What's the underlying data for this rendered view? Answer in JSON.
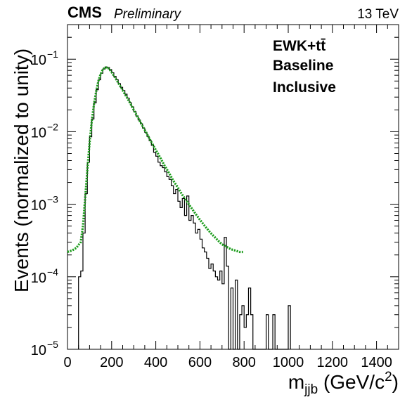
{
  "header": {
    "experiment": "CMS",
    "status": "Preliminary",
    "energy": "13 TeV"
  },
  "legend_text": {
    "line1": "EWK+tt̄",
    "line2": "Baseline",
    "line3": "Inclusive"
  },
  "axes": {
    "x_label_main": "m",
    "x_label_sub": "jjb",
    "x_label_units": " (GeV/c",
    "x_label_exp": "2",
    "x_label_close": ")",
    "y_label": "Events (normalized to unity)"
  },
  "chart_data": {
    "type": "line",
    "title": "",
    "xlabel": "m_jjb (GeV/c^2)",
    "ylabel": "Events (normalized to unity)",
    "xlim": [
      0,
      1500
    ],
    "ylim": [
      1e-05,
      0.3
    ],
    "yscale": "log",
    "grid": false,
    "x_ticks": [
      0,
      200,
      400,
      600,
      800,
      1000,
      1200,
      1400
    ],
    "y_ticks": [
      {
        "value": 1e-05,
        "mant": "10",
        "exp": "−5"
      },
      {
        "value": 0.0001,
        "mant": "10",
        "exp": "−4"
      },
      {
        "value": 0.001,
        "mant": "10",
        "exp": "−3"
      },
      {
        "value": 0.01,
        "mant": "10",
        "exp": "−2"
      },
      {
        "value": 0.1,
        "mant": "10",
        "exp": "−1"
      }
    ],
    "histogram": {
      "bin_width": 10,
      "color": "#000000",
      "bins": [
        [
          50,
          0.0001
        ],
        [
          60,
          0.00012
        ],
        [
          70,
          0.0004
        ],
        [
          80,
          0.0014
        ],
        [
          90,
          0.0038
        ],
        [
          100,
          0.0085
        ],
        [
          110,
          0.015
        ],
        [
          120,
          0.025
        ],
        [
          130,
          0.038
        ],
        [
          140,
          0.052
        ],
        [
          150,
          0.064
        ],
        [
          160,
          0.073
        ],
        [
          170,
          0.078
        ],
        [
          180,
          0.077
        ],
        [
          190,
          0.072
        ],
        [
          200,
          0.065
        ],
        [
          210,
          0.058
        ],
        [
          220,
          0.052
        ],
        [
          230,
          0.046
        ],
        [
          240,
          0.041
        ],
        [
          250,
          0.037
        ],
        [
          260,
          0.033
        ],
        [
          270,
          0.029
        ],
        [
          280,
          0.025
        ],
        [
          290,
          0.022
        ],
        [
          300,
          0.019
        ],
        [
          310,
          0.0165
        ],
        [
          320,
          0.0145
        ],
        [
          330,
          0.0128
        ],
        [
          340,
          0.0112
        ],
        [
          350,
          0.0098
        ],
        [
          360,
          0.0086
        ],
        [
          370,
          0.0075
        ],
        [
          380,
          0.0065
        ],
        [
          390,
          0.0052
        ],
        [
          400,
          0.0046
        ],
        [
          410,
          0.0038
        ],
        [
          420,
          0.0034
        ],
        [
          430,
          0.0032
        ],
        [
          440,
          0.0028
        ],
        [
          450,
          0.0024
        ],
        [
          460,
          0.0022
        ],
        [
          470,
          0.0018
        ],
        [
          480,
          0.0014
        ],
        [
          490,
          0.0016
        ],
        [
          500,
          0.0011
        ],
        [
          510,
          0.0009
        ],
        [
          520,
          0.0012
        ],
        [
          530,
          0.0007
        ],
        [
          540,
          0.0013
        ],
        [
          550,
          0.0006
        ],
        [
          560,
          0.0007
        ],
        [
          570,
          0.00055
        ],
        [
          580,
          0.0004
        ],
        [
          590,
          0.00045
        ],
        [
          600,
          0.00033
        ],
        [
          610,
          0.00025
        ],
        [
          620,
          0.00022
        ],
        [
          630,
          0.00018
        ],
        [
          640,
          0.00013
        ],
        [
          650,
          0.00015
        ],
        [
          660,
          0.00012
        ],
        [
          670,
          0.0001
        ],
        [
          680,
          9e-05
        ],
        [
          690,
          0.00012
        ],
        [
          700,
          8e-05
        ],
        [
          710,
          0.00035
        ],
        [
          720,
          0.00014
        ],
        [
          730,
          1e-05
        ],
        [
          740,
          7e-05
        ],
        [
          750,
          1e-05
        ],
        [
          760,
          9e-05
        ],
        [
          770,
          1e-05
        ],
        [
          780,
          3e-05
        ],
        [
          790,
          4e-05
        ],
        [
          800,
          2e-05
        ],
        [
          810,
          3e-05
        ],
        [
          820,
          7e-05
        ],
        [
          830,
          3e-05
        ],
        [
          840,
          1e-05
        ],
        [
          850,
          1e-05
        ],
        [
          860,
          1e-05
        ],
        [
          870,
          1e-05
        ],
        [
          880,
          1e-05
        ],
        [
          890,
          1e-05
        ],
        [
          900,
          3e-05
        ],
        [
          910,
          1e-05
        ],
        [
          920,
          1e-05
        ],
        [
          930,
          3e-05
        ],
        [
          940,
          1e-05
        ],
        [
          950,
          1e-05
        ],
        [
          960,
          1e-05
        ],
        [
          970,
          1e-05
        ],
        [
          980,
          1e-05
        ],
        [
          990,
          1e-05
        ],
        [
          1000,
          4e-05
        ]
      ]
    },
    "fit_curve": {
      "color": "#1a9c1a",
      "points": [
        [
          0,
          0.00022
        ],
        [
          20,
          0.00023
        ],
        [
          40,
          0.00025
        ],
        [
          60,
          0.0003
        ],
        [
          70,
          0.0005
        ],
        [
          80,
          0.0012
        ],
        [
          90,
          0.003
        ],
        [
          100,
          0.007
        ],
        [
          110,
          0.014
        ],
        [
          120,
          0.024
        ],
        [
          130,
          0.036
        ],
        [
          140,
          0.05
        ],
        [
          150,
          0.062
        ],
        [
          160,
          0.072
        ],
        [
          170,
          0.077
        ],
        [
          180,
          0.077
        ],
        [
          190,
          0.073
        ],
        [
          200,
          0.066
        ],
        [
          220,
          0.053
        ],
        [
          240,
          0.042
        ],
        [
          260,
          0.033
        ],
        [
          280,
          0.026
        ],
        [
          300,
          0.02
        ],
        [
          320,
          0.0155
        ],
        [
          340,
          0.012
        ],
        [
          360,
          0.0093
        ],
        [
          380,
          0.0072
        ],
        [
          400,
          0.0056
        ],
        [
          420,
          0.0044
        ],
        [
          440,
          0.0034
        ],
        [
          460,
          0.0027
        ],
        [
          480,
          0.0021
        ],
        [
          500,
          0.0017
        ],
        [
          520,
          0.00135
        ],
        [
          540,
          0.0011
        ],
        [
          560,
          0.0009
        ],
        [
          580,
          0.00074
        ],
        [
          600,
          0.00061
        ],
        [
          620,
          0.00051
        ],
        [
          640,
          0.00043
        ],
        [
          660,
          0.00037
        ],
        [
          680,
          0.00032
        ],
        [
          700,
          0.00028
        ],
        [
          720,
          0.00026
        ],
        [
          740,
          0.00024
        ],
        [
          760,
          0.00023
        ],
        [
          780,
          0.00022
        ],
        [
          795,
          0.00022
        ]
      ]
    }
  }
}
